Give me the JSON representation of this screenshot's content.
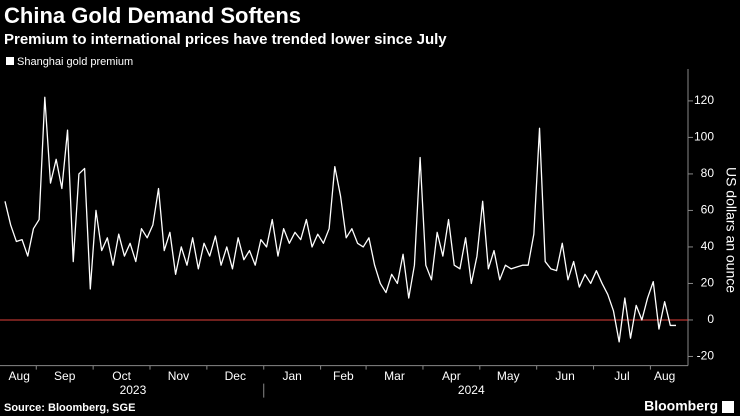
{
  "chart_data": {
    "type": "line",
    "title": "China Gold Demand Softens",
    "subtitle": "Premium to international prices have trended lower since July",
    "y_label": "US dollars an ounce",
    "source": "Source: Bloomberg, SGE",
    "brand": "Bloomberg",
    "categories": [
      "Aug",
      "Aug",
      "Aug",
      "Aug",
      "Aug",
      "Aug",
      "Sep",
      "Sep",
      "Sep",
      "Sep",
      "Sep",
      "Sep",
      "Sep",
      "Sep",
      "Sep",
      "Sep",
      "Oct",
      "Oct",
      "Oct",
      "Oct",
      "Oct",
      "Oct",
      "Oct",
      "Oct",
      "Oct",
      "Oct",
      "Nov",
      "Nov",
      "Nov",
      "Nov",
      "Nov",
      "Nov",
      "Nov",
      "Nov",
      "Nov",
      "Nov",
      "Dec",
      "Dec",
      "Dec",
      "Dec",
      "Dec",
      "Dec",
      "Dec",
      "Dec",
      "Dec",
      "Dec",
      "Jan",
      "Jan",
      "Jan",
      "Jan",
      "Jan",
      "Jan",
      "Jan",
      "Jan",
      "Jan",
      "Jan",
      "Feb",
      "Feb",
      "Feb",
      "Feb",
      "Feb",
      "Feb",
      "Feb",
      "Feb",
      "Mar",
      "Mar",
      "Mar",
      "Mar",
      "Mar",
      "Mar",
      "Mar",
      "Mar",
      "Mar",
      "Mar",
      "Apr",
      "Apr",
      "Apr",
      "Apr",
      "Apr",
      "Apr",
      "Apr",
      "Apr",
      "Apr",
      "Apr",
      "May",
      "May",
      "May",
      "May",
      "May",
      "May",
      "May",
      "May",
      "May",
      "May",
      "Jun",
      "Jun",
      "Jun",
      "Jun",
      "Jun",
      "Jun",
      "Jun",
      "Jun",
      "Jun",
      "Jun",
      "Jul",
      "Jul",
      "Jul",
      "Jul",
      "Jul",
      "Jul",
      "Jul",
      "Jul",
      "Jul",
      "Jul",
      "Aug",
      "Aug",
      "Aug",
      "Aug",
      "Aug"
    ],
    "x_groups": [
      {
        "label": "2023",
        "months": [
          "Aug",
          "Sep",
          "Oct",
          "Nov",
          "Dec"
        ]
      },
      {
        "label": "2024",
        "months": [
          "Jan",
          "Feb",
          "Mar",
          "Apr",
          "May",
          "Jun",
          "Jul",
          "Aug"
        ]
      }
    ],
    "series": [
      {
        "name": "Shanghai gold premium",
        "color": "#ffffff",
        "values": [
          65,
          52,
          43,
          44,
          35,
          50,
          55,
          122,
          75,
          88,
          72,
          104,
          32,
          80,
          83,
          17,
          60,
          38,
          45,
          30,
          47,
          35,
          42,
          32,
          50,
          45,
          52,
          72,
          38,
          48,
          25,
          40,
          30,
          45,
          28,
          42,
          35,
          46,
          30,
          40,
          28,
          45,
          33,
          38,
          30,
          44,
          40,
          55,
          35,
          50,
          42,
          48,
          44,
          55,
          40,
          47,
          42,
          50,
          84,
          68,
          45,
          50,
          42,
          40,
          45,
          30,
          20,
          15,
          25,
          20,
          36,
          12,
          30,
          89,
          30,
          22,
          48,
          35,
          55,
          30,
          28,
          45,
          20,
          35,
          65,
          28,
          38,
          22,
          30,
          28,
          29,
          30,
          30,
          47,
          105,
          32,
          28,
          27,
          42,
          22,
          32,
          18,
          25,
          20,
          27,
          20,
          14,
          5,
          -12,
          12,
          -10,
          8,
          0,
          12,
          21,
          -5,
          10,
          -3,
          -3
        ]
      }
    ],
    "reference_line": {
      "value": 0,
      "color": "#e0413a"
    },
    "ylim": [
      -25,
      132
    ],
    "yticks": [
      -20,
      0,
      20,
      40,
      60,
      80,
      100,
      120
    ],
    "grid": false
  }
}
